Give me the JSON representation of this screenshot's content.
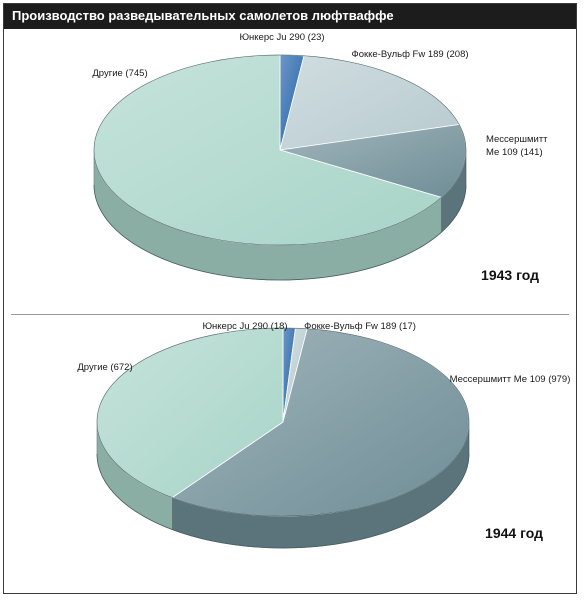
{
  "page": {
    "title": "Производство разведывательных самолетов люфтваффе"
  },
  "chart_data": [
    {
      "type": "pie",
      "title": "1943 год",
      "slices": [
        {
          "key": "ju290",
          "label": "Юнкерс Ju 290 (23)",
          "value": 23,
          "color": "#1f5fa8"
        },
        {
          "key": "fw189",
          "label": "Фокке-Вульф Fw 189 (208)",
          "value": 208,
          "color": "#b7cacf"
        },
        {
          "key": "me109",
          "label_lines": [
            "Мессершмитт",
            "Ме 109 (141)"
          ],
          "value": 141,
          "color": "#6f8d97"
        },
        {
          "key": "other",
          "label": "Другие (745)",
          "value": 745,
          "color": "#a8d4c8"
        }
      ]
    },
    {
      "type": "pie",
      "title": "1944 год",
      "slices": [
        {
          "key": "ju290",
          "label": "Юнкерс Ju 290 (18)",
          "value": 18,
          "color": "#1f5fa8"
        },
        {
          "key": "fw189",
          "label": "Фокке-Вульф Fw 189 (17)",
          "value": 17,
          "color": "#b7cacf"
        },
        {
          "key": "me109",
          "label": "Мессершмитт Ме 109 (979)",
          "value": 979,
          "color": "#6f8d97"
        },
        {
          "key": "other",
          "label": "Другие (672)",
          "value": 672,
          "color": "#a8d4c8"
        }
      ]
    }
  ]
}
